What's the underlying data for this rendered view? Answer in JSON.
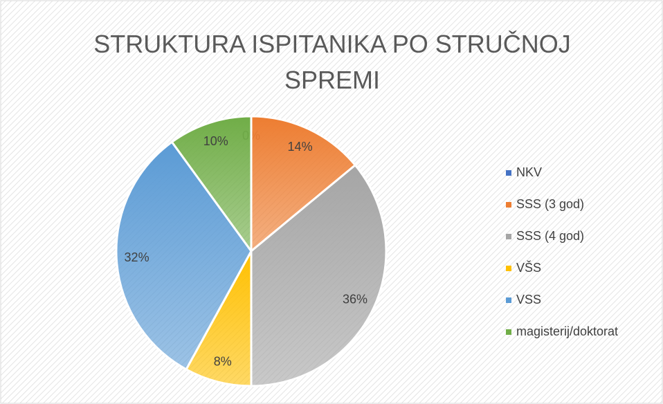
{
  "chart_data": {
    "type": "pie",
    "title": "STRUKTURA ISPITANIKA PO STRUČNOJ SPREMI",
    "categories": [
      "NKV",
      "SSS (3 god)",
      "SSS (4 god)",
      "VŠS",
      "VSS",
      "magisterij/doktorat"
    ],
    "values": [
      0,
      14,
      36,
      8,
      32,
      10
    ],
    "value_labels": [
      "0%",
      "14%",
      "36%",
      "8%",
      "32%",
      "10%"
    ],
    "colors": [
      "#4472c4",
      "#ed7d31",
      "#a5a5a5",
      "#ffc000",
      "#5b9bd5",
      "#70ad47"
    ],
    "legend": "right"
  }
}
